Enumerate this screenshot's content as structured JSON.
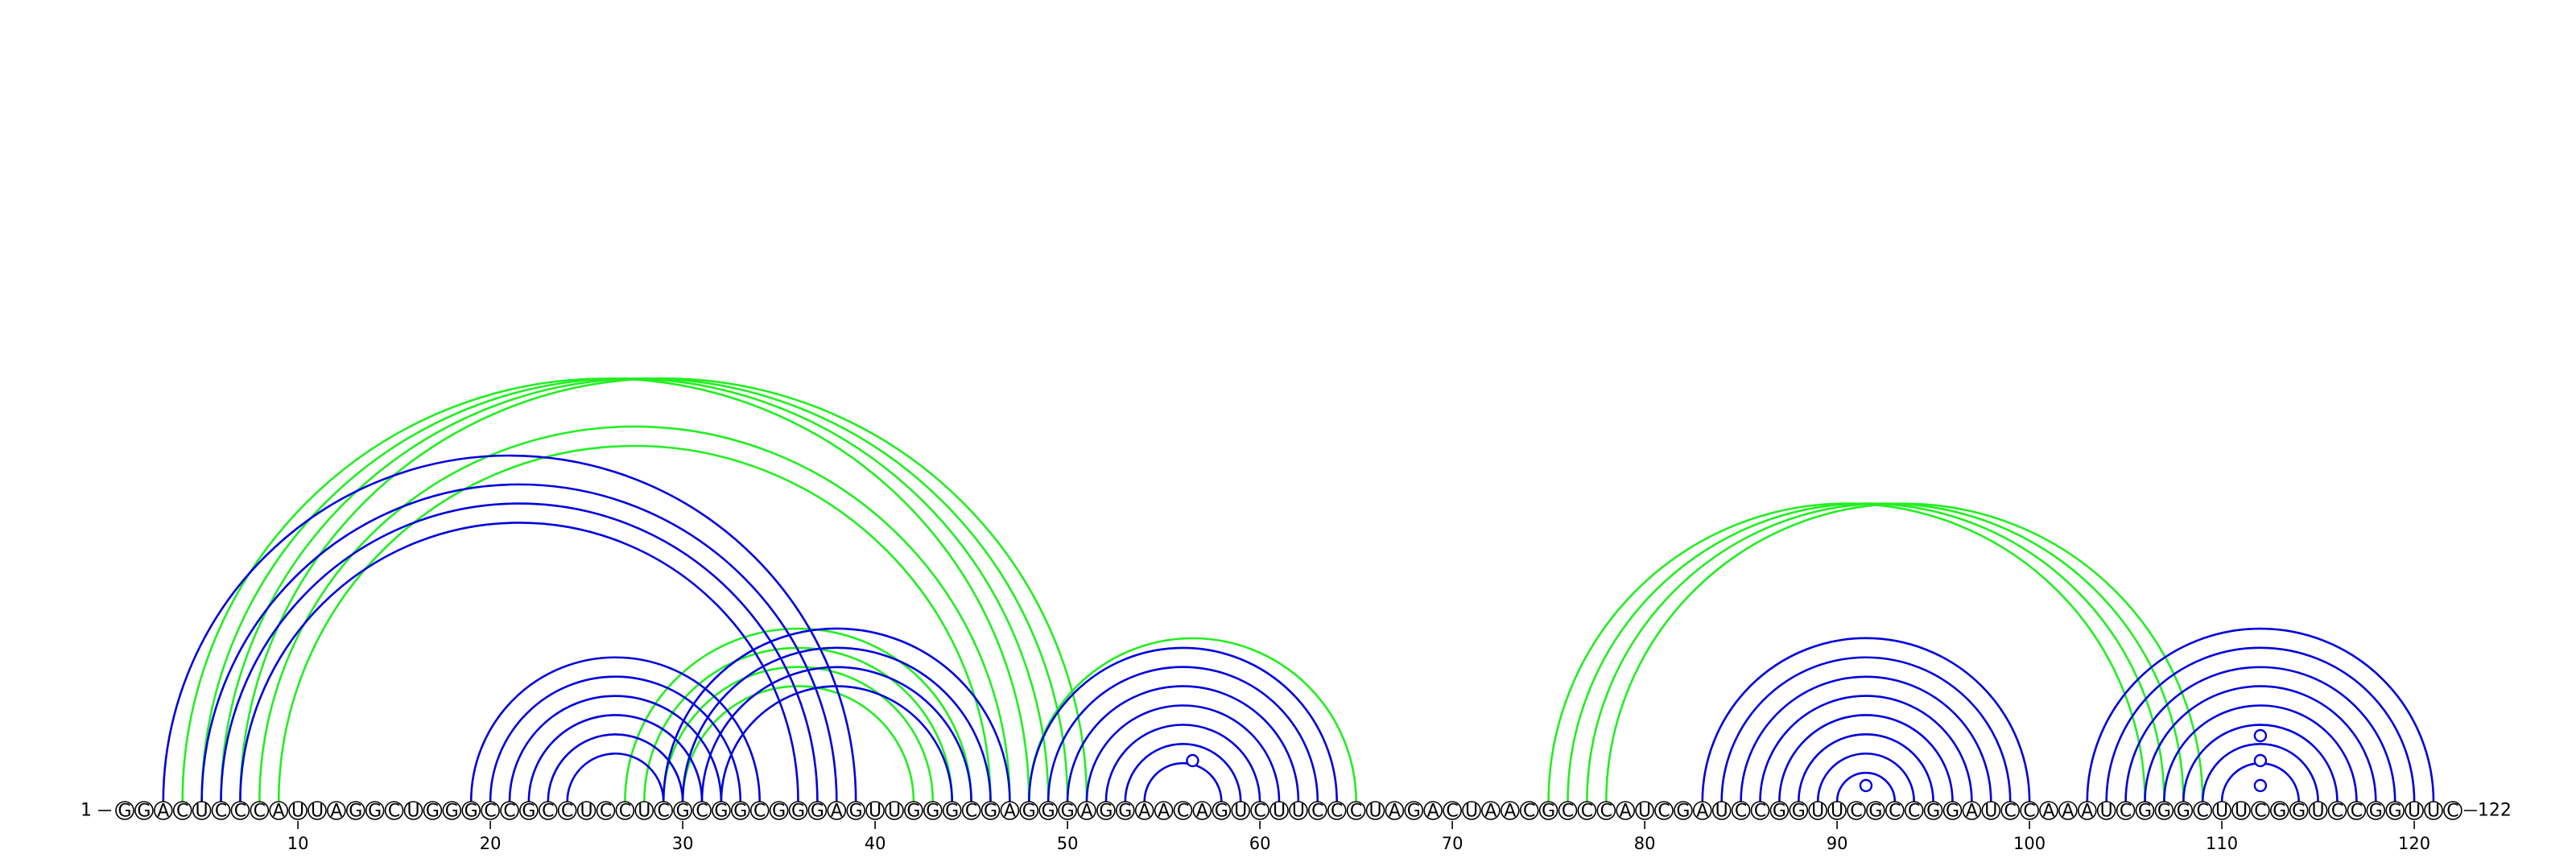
{
  "chart_data": {
    "type": "arc-diagram",
    "sequence": "GGACUCCCAUUAGGCUGGGCCGCCUCCUCGCGGCGGGAGUUGGGCGAGGGAGGAACAGUCUUCCCUAGACUAACGCCCAUCGAUCCGGUUCGCCGGAUCCAAAUCGGGCUUCGGUCCGGUUC",
    "start_label": "1",
    "end_label": "122",
    "ticks": [
      10,
      20,
      30,
      40,
      50,
      60,
      70,
      80,
      90,
      100,
      110,
      120
    ],
    "colors": {
      "blue": "#0000dd",
      "green": "#22ee22"
    },
    "blue_pairs": [
      [
        3,
        39
      ],
      [
        5,
        38
      ],
      [
        6,
        37
      ],
      [
        7,
        36
      ],
      [
        19,
        34
      ],
      [
        20,
        33
      ],
      [
        21,
        32
      ],
      [
        22,
        31
      ],
      [
        23,
        30
      ],
      [
        24,
        29
      ],
      [
        29,
        47
      ],
      [
        30,
        46
      ],
      [
        31,
        45
      ],
      [
        32,
        44
      ],
      [
        48,
        64
      ],
      [
        49,
        63
      ],
      [
        50,
        62
      ],
      [
        51,
        61
      ],
      [
        52,
        60
      ],
      [
        53,
        59
      ],
      [
        54,
        58
      ],
      [
        83,
        100
      ],
      [
        84,
        99
      ],
      [
        85,
        98
      ],
      [
        86,
        97
      ],
      [
        87,
        96
      ],
      [
        88,
        95
      ],
      [
        89,
        94
      ],
      [
        90,
        93
      ],
      [
        103,
        121
      ],
      [
        104,
        120
      ],
      [
        105,
        119
      ],
      [
        106,
        118
      ],
      [
        107,
        117
      ],
      [
        108,
        116
      ],
      [
        109,
        115
      ],
      [
        110,
        114
      ]
    ],
    "green_pairs": [
      [
        4,
        48
      ],
      [
        5,
        49
      ],
      [
        6,
        50
      ],
      [
        7,
        51
      ],
      [
        8,
        47
      ],
      [
        9,
        46
      ],
      [
        27,
        45
      ],
      [
        28,
        44
      ],
      [
        29,
        43
      ],
      [
        30,
        42
      ],
      [
        48,
        65
      ],
      [
        75,
        106
      ],
      [
        76,
        107
      ],
      [
        77,
        108
      ],
      [
        78,
        109
      ]
    ],
    "markers": [
      {
        "pos": 56.5,
        "level": 1,
        "color": "blue"
      },
      {
        "pos": 91.5,
        "level": 0,
        "color": "blue"
      },
      {
        "pos": 112,
        "level": 0,
        "color": "blue"
      },
      {
        "pos": 112,
        "level": 1,
        "color": "blue"
      },
      {
        "pos": 112,
        "level": 2,
        "color": "blue"
      }
    ]
  }
}
